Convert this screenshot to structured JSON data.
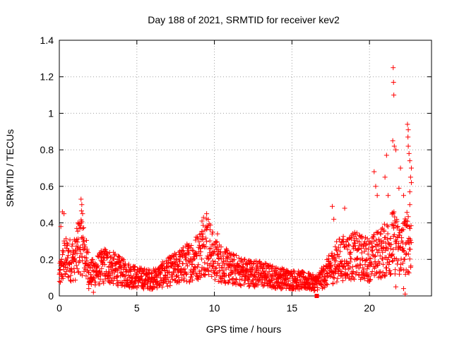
{
  "chart_data": {
    "type": "scatter",
    "title": "Day 188 of 2021, SRMTID for receiver kev2",
    "xlabel": "GPS time / hours",
    "ylabel": "SRMTID / TECUs",
    "xlim": [
      0,
      24
    ],
    "ylim": [
      0,
      1.4
    ],
    "xticks": [
      0,
      5,
      10,
      15,
      20
    ],
    "xtick_labels": [
      "0",
      "5",
      "10",
      "15",
      "20"
    ],
    "yticks": [
      0,
      0.2,
      0.4,
      0.6,
      0.8,
      1.0,
      1.2,
      1.4
    ],
    "ytick_labels": [
      "0",
      "0.2",
      "0.4",
      "0.6",
      "0.8",
      "1",
      "1.2",
      "1.4"
    ],
    "grid": true,
    "marker": "+",
    "color": "#ff0000",
    "series": [
      {
        "name": "SRMTID",
        "baseline_profile": {
          "x": [
            0,
            0.3,
            1,
            1.4,
            2,
            3,
            4,
            5,
            6,
            7,
            8,
            9,
            9.5,
            10,
            11,
            12,
            13,
            14,
            15,
            16,
            16.5,
            17,
            18,
            19,
            20,
            21,
            21.5,
            22,
            22.5
          ],
          "y": [
            0.1,
            0.2,
            0.2,
            0.3,
            0.12,
            0.17,
            0.13,
            0.1,
            0.09,
            0.13,
            0.17,
            0.22,
            0.3,
            0.2,
            0.15,
            0.13,
            0.12,
            0.1,
            0.09,
            0.08,
            0.07,
            0.1,
            0.2,
            0.22,
            0.2,
            0.25,
            0.3,
            0.25,
            0.3
          ]
        },
        "notable_points": [
          {
            "x": 0.2,
            "y": 0.46
          },
          {
            "x": 0.3,
            "y": 0.45
          },
          {
            "x": 0.1,
            "y": 0.38
          },
          {
            "x": 1.4,
            "y": 0.53
          },
          {
            "x": 1.45,
            "y": 0.5
          },
          {
            "x": 1.5,
            "y": 0.45
          },
          {
            "x": 1.5,
            "y": 0.37
          },
          {
            "x": 1.2,
            "y": 0.4
          },
          {
            "x": 9.5,
            "y": 0.45
          },
          {
            "x": 9.3,
            "y": 0.43
          },
          {
            "x": 9.2,
            "y": 0.41
          },
          {
            "x": 10.2,
            "y": 0.34
          },
          {
            "x": 18.4,
            "y": 0.48
          },
          {
            "x": 17.6,
            "y": 0.49
          },
          {
            "x": 17.7,
            "y": 0.42
          },
          {
            "x": 20.3,
            "y": 0.68
          },
          {
            "x": 20.4,
            "y": 0.6
          },
          {
            "x": 20.5,
            "y": 0.55
          },
          {
            "x": 21.0,
            "y": 0.65
          },
          {
            "x": 21.2,
            "y": 0.55
          },
          {
            "x": 21.1,
            "y": 0.77
          },
          {
            "x": 21.5,
            "y": 0.85
          },
          {
            "x": 21.6,
            "y": 0.82
          },
          {
            "x": 21.7,
            "y": 0.8
          },
          {
            "x": 21.9,
            "y": 0.59
          },
          {
            "x": 22.0,
            "y": 0.7
          },
          {
            "x": 22.2,
            "y": 0.55
          },
          {
            "x": 21.53,
            "y": 1.25
          },
          {
            "x": 21.55,
            "y": 1.17
          },
          {
            "x": 21.57,
            "y": 1.1
          },
          {
            "x": 22.45,
            "y": 0.94
          },
          {
            "x": 22.5,
            "y": 0.91
          },
          {
            "x": 22.48,
            "y": 0.87
          },
          {
            "x": 22.5,
            "y": 0.82
          },
          {
            "x": 22.55,
            "y": 0.78
          },
          {
            "x": 22.6,
            "y": 0.74
          },
          {
            "x": 22.7,
            "y": 0.7
          },
          {
            "x": 22.65,
            "y": 0.65
          },
          {
            "x": 22.7,
            "y": 0.62
          },
          {
            "x": 22.6,
            "y": 0.57
          },
          {
            "x": 22.6,
            "y": 0.5
          },
          {
            "x": 22.3,
            "y": 0.01
          },
          {
            "x": 22.2,
            "y": 0.04
          },
          {
            "x": 21.7,
            "y": 0.05
          },
          {
            "x": 1.9,
            "y": 0.04
          },
          {
            "x": 2.2,
            "y": 0.02
          }
        ]
      }
    ],
    "special_marker": {
      "x": 16.6,
      "y": 0.0,
      "shape": "square",
      "color": "#ff0000"
    }
  }
}
